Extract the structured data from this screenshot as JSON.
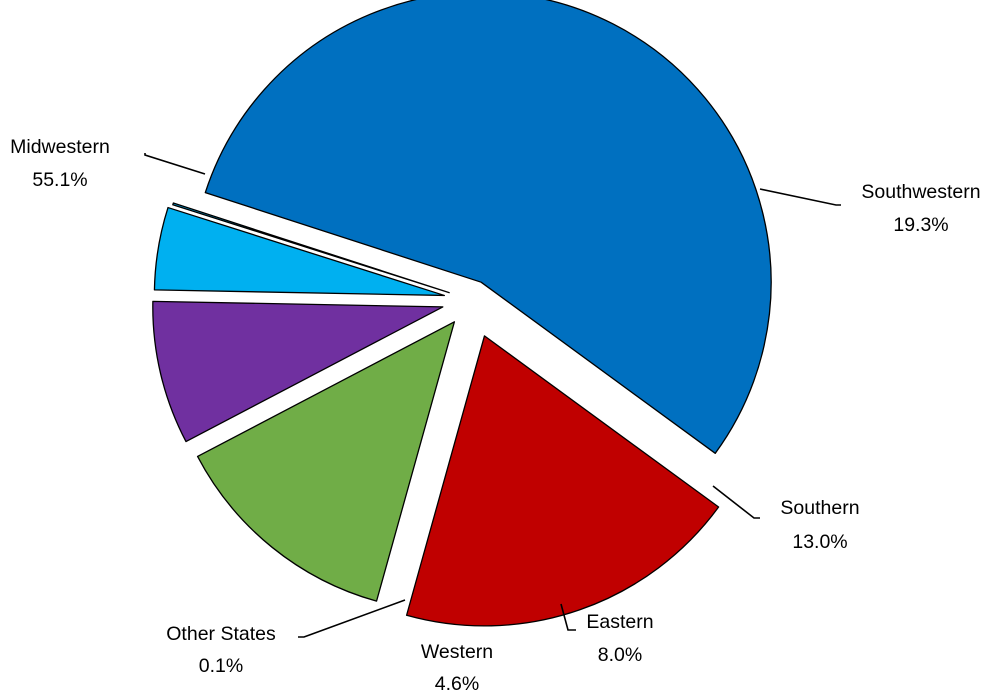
{
  "chart_data": {
    "type": "pie",
    "title": "",
    "slices": [
      {
        "label": "Midwestern",
        "value_text": "55.1%",
        "value": 55.1,
        "color": "#0070c0"
      },
      {
        "label": "Southwestern",
        "value_text": "19.3%",
        "value": 19.3,
        "color": "#c00000"
      },
      {
        "label": "Southern",
        "value_text": "13.0%",
        "value": 13.0,
        "color": "#70ad47"
      },
      {
        "label": "Eastern",
        "value_text": "8.0%",
        "value": 8.0,
        "color": "#7030a0"
      },
      {
        "label": "Western",
        "value_text": "4.6%",
        "value": 4.6,
        "color": "#00b0f0"
      },
      {
        "label": "Other States",
        "value_text": "0.1%",
        "value": 0.1,
        "color": "#00b0f0"
      }
    ],
    "exploded": true,
    "legend": "none"
  }
}
